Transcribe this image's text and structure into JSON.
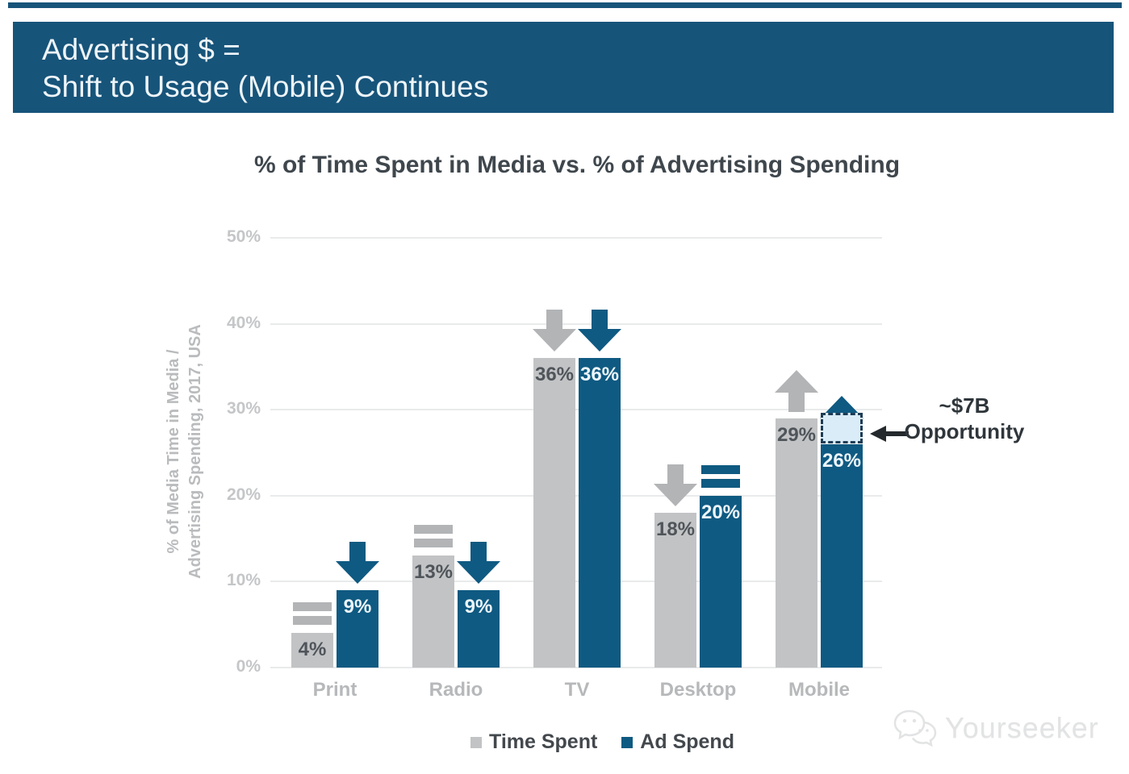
{
  "header": {
    "line1": "Advertising $ =",
    "line2": "Shift to Usage (Mobile) Continues",
    "bg_color": "#17547a"
  },
  "chart_data": {
    "type": "bar",
    "title": "% of Time Spent in Media vs. % of Advertising Spending",
    "ylabel_line1": "% of Media Time in Media /",
    "ylabel_line2": "Advertising Spending, 2017, USA",
    "categories": [
      "Print",
      "Radio",
      "TV",
      "Desktop",
      "Mobile"
    ],
    "yticks": [
      0,
      10,
      20,
      30,
      40,
      50
    ],
    "ylim": [
      0,
      50
    ],
    "unit": "%",
    "grid": true,
    "legend_position": "bottom",
    "series": [
      {
        "name": "Time Spent",
        "color": "#c2c3c5",
        "trend_color": "#b2b4b6",
        "label_color": "#4f555a",
        "values": [
          4,
          13,
          36,
          18,
          29
        ],
        "trends": [
          "flat",
          "flat",
          "down",
          "down",
          "up"
        ]
      },
      {
        "name": "Ad Spend",
        "color": "#0f5a82",
        "trend_color": "#0f5a82",
        "label_color": "#edf6fc",
        "values": [
          9,
          9,
          36,
          20,
          26
        ],
        "trends": [
          "down",
          "down",
          "down",
          "flat",
          "up"
        ]
      }
    ],
    "annotation": {
      "line1": "~$7B",
      "line2": "Opportunity",
      "box": {
        "category": "Mobile",
        "series": "Ad Spend",
        "from": 26,
        "to": 29.6,
        "fill": "#d9ecf8",
        "border": "#1d3c55"
      }
    }
  },
  "watermark": {
    "text": "Yourseeker"
  }
}
